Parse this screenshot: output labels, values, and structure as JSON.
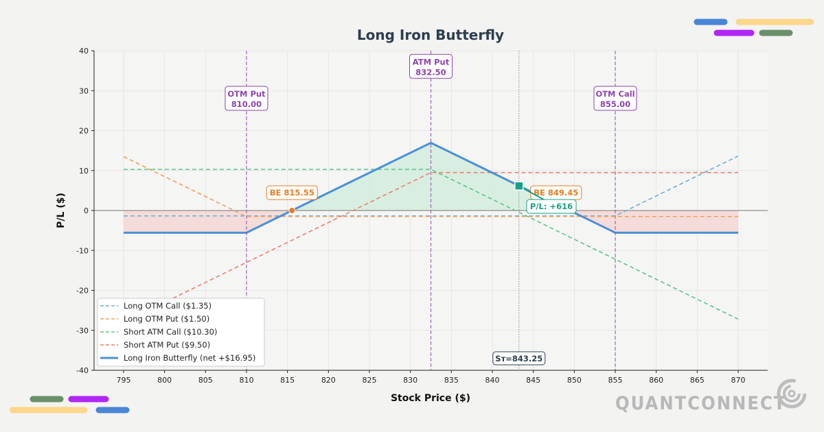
{
  "chart_data": {
    "type": "line",
    "title": "Long Iron Butterfly",
    "xlabel": "Stock Price ($)",
    "ylabel": "P/L ($)",
    "xlim": [
      791.4,
      873.6
    ],
    "ylim": [
      -40,
      40
    ],
    "xticks": [
      795,
      800,
      805,
      810,
      815,
      820,
      825,
      830,
      835,
      840,
      845,
      850,
      855,
      860,
      865,
      870
    ],
    "yticks": [
      40,
      30,
      20,
      10,
      0,
      -10,
      -20,
      -30,
      -40
    ],
    "grid": true,
    "legend_position": "lower-left",
    "series": [
      {
        "name": "Long OTM Call ($1.35)",
        "color": "#6aaed6",
        "style": "dashed",
        "x": [
          795,
          855,
          870
        ],
        "y": [
          -1.35,
          -1.35,
          13.65
        ]
      },
      {
        "name": "Long OTM Put ($1.50)",
        "color": "#f0a05a",
        "style": "dashed",
        "x": [
          795,
          810,
          870
        ],
        "y": [
          13.5,
          -1.5,
          -1.5
        ]
      },
      {
        "name": "Short ATM Call ($10.30)",
        "color": "#5cc48a",
        "style": "dashed",
        "x": [
          795,
          832.5,
          870
        ],
        "y": [
          10.3,
          10.3,
          -27.2
        ]
      },
      {
        "name": "Short ATM Put ($9.50)",
        "color": "#ec7f6e",
        "style": "dashed",
        "x": [
          795,
          832.5,
          870
        ],
        "y": [
          -28,
          9.5,
          9.5
        ]
      },
      {
        "name": "Long Iron Butterfly (net +$16.95)",
        "color": "#4a90d9",
        "style": "solid",
        "x": [
          795,
          810,
          832.5,
          855,
          870
        ],
        "y": [
          -5.55,
          -5.55,
          16.95,
          -5.55,
          -5.55
        ]
      }
    ],
    "strikes": [
      {
        "label": "OTM Put",
        "value": "810.00",
        "x": 810,
        "label_y": 28
      },
      {
        "label": "ATM Put",
        "value": "832.50",
        "x": 832.5,
        "label_y": 36
      },
      {
        "label": "OTM Call",
        "value": "855.00",
        "x": 855,
        "label_y": 28
      }
    ],
    "breakevens": [
      {
        "label": "BE 815.55",
        "x": 815.55
      },
      {
        "label": "BE 849.45",
        "x": 849.45
      }
    ],
    "current": {
      "x": 843.25,
      "y": 6.16,
      "label": "Sт=843.25",
      "pl_label": "P/L: +616"
    },
    "colors": {
      "strike": "#8e44ad",
      "breakeven": "#e67e22",
      "current": "#16a085",
      "profit_fill": "#d2ecdc",
      "loss_fill": "#f4d6d4"
    }
  },
  "logo": "QUANTCONNECT"
}
